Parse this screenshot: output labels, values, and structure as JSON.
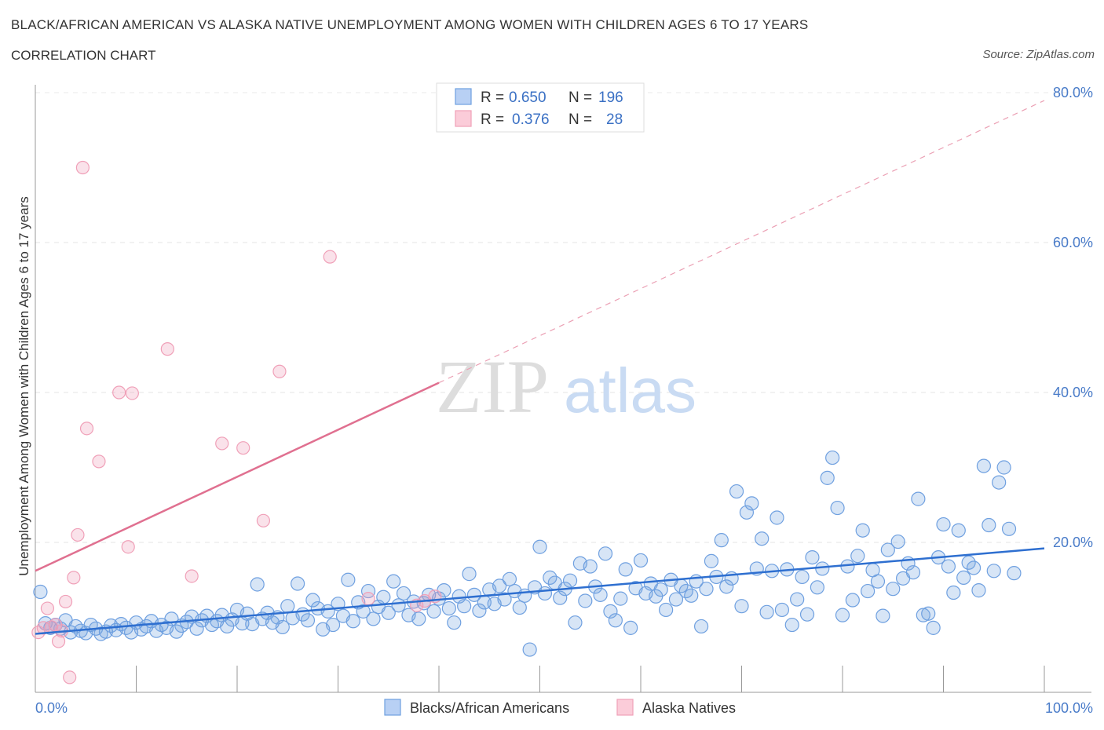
{
  "title": "BLACK/AFRICAN AMERICAN VS ALASKA NATIVE UNEMPLOYMENT AMONG WOMEN WITH CHILDREN AGES 6 TO 17 YEARS",
  "subtitle": "CORRELATION CHART",
  "source": "Source: ZipAtlas.com",
  "watermark": {
    "zip": "ZIP",
    "atlas": "atlas"
  },
  "colors": {
    "blue": "#6fa0e0",
    "blue_line": "#2e6fd0",
    "pink": "#f0a0b8",
    "pink_line": "#e07090"
  },
  "legend": {
    "r_label": "R =",
    "n_label": "N =",
    "rows": [
      {
        "r": "0.650",
        "n": "196"
      },
      {
        "r": "0.376",
        "n": "28"
      }
    ]
  },
  "chart_data": {
    "type": "scatter",
    "title": "BLACK/AFRICAN AMERICAN VS ALASKA NATIVE UNEMPLOYMENT AMONG WOMEN WITH CHILDREN AGES 6 TO 17 YEARS",
    "xlabel": "",
    "ylabel": "Unemployment Among Women with Children Ages 6 to 17 years",
    "xlim": [
      0,
      100
    ],
    "ylim": [
      0,
      80
    ],
    "x_tick_labels": [
      "0.0%",
      "100.0%"
    ],
    "y_tick_labels": [
      "20.0%",
      "40.0%",
      "60.0%",
      "80.0%"
    ],
    "y_ticks": [
      20,
      40,
      60,
      80
    ],
    "grid": true,
    "legend_position": "top-center",
    "series": [
      {
        "name": "Blacks/African Americans",
        "r": 0.65,
        "n": 196,
        "trend": {
          "x": [
            0,
            100
          ],
          "y": [
            7.8,
            19.2
          ]
        },
        "points": [
          [
            0.5,
            13.4
          ],
          [
            1,
            9.2
          ],
          [
            1.5,
            8.6
          ],
          [
            2,
            9.0
          ],
          [
            2.5,
            8.5
          ],
          [
            3,
            9.6
          ],
          [
            3.5,
            8.0
          ],
          [
            4,
            8.8
          ],
          [
            4.5,
            8.2
          ],
          [
            5,
            7.9
          ],
          [
            5.5,
            9.0
          ],
          [
            6,
            8.5
          ],
          [
            6.5,
            7.8
          ],
          [
            7,
            8.1
          ],
          [
            7.5,
            8.9
          ],
          [
            8,
            8.3
          ],
          [
            8.5,
            9.1
          ],
          [
            9,
            8.6
          ],
          [
            9.5,
            8.0
          ],
          [
            10,
            9.3
          ],
          [
            10.5,
            8.4
          ],
          [
            11,
            8.8
          ],
          [
            11.5,
            9.5
          ],
          [
            12,
            8.2
          ],
          [
            12.5,
            9.0
          ],
          [
            13,
            8.6
          ],
          [
            13.5,
            9.8
          ],
          [
            14,
            8.1
          ],
          [
            14.5,
            8.9
          ],
          [
            15,
            9.4
          ],
          [
            15.5,
            10.1
          ],
          [
            16,
            8.5
          ],
          [
            16.5,
            9.6
          ],
          [
            17,
            10.2
          ],
          [
            17.5,
            9.0
          ],
          [
            18,
            9.5
          ],
          [
            18.5,
            10.3
          ],
          [
            19,
            8.8
          ],
          [
            19.5,
            9.7
          ],
          [
            20,
            11.0
          ],
          [
            20.5,
            9.2
          ],
          [
            21,
            10.5
          ],
          [
            21.5,
            9.1
          ],
          [
            22,
            14.4
          ],
          [
            22.5,
            9.8
          ],
          [
            23,
            10.6
          ],
          [
            23.5,
            9.3
          ],
          [
            24,
            10.0
          ],
          [
            24.5,
            8.7
          ],
          [
            25,
            11.5
          ],
          [
            25.5,
            9.9
          ],
          [
            26,
            14.5
          ],
          [
            26.5,
            10.4
          ],
          [
            27,
            9.6
          ],
          [
            27.5,
            12.3
          ],
          [
            28,
            11.2
          ],
          [
            28.5,
            8.4
          ],
          [
            29,
            10.8
          ],
          [
            29.5,
            9.0
          ],
          [
            30,
            11.8
          ],
          [
            30.5,
            10.2
          ],
          [
            31,
            15.0
          ],
          [
            31.5,
            9.5
          ],
          [
            32,
            12.0
          ],
          [
            32.5,
            10.8
          ],
          [
            33,
            13.5
          ],
          [
            33.5,
            9.8
          ],
          [
            34,
            11.4
          ],
          [
            34.5,
            12.7
          ],
          [
            35,
            10.6
          ],
          [
            35.5,
            14.8
          ],
          [
            36,
            11.6
          ],
          [
            36.5,
            13.2
          ],
          [
            37,
            10.3
          ],
          [
            37.5,
            12.1
          ],
          [
            38,
            9.8
          ],
          [
            38.5,
            11.9
          ],
          [
            39,
            13.0
          ],
          [
            39.5,
            10.8
          ],
          [
            40,
            12.5
          ],
          [
            40.5,
            13.6
          ],
          [
            41,
            11.2
          ],
          [
            41.5,
            9.3
          ],
          [
            42,
            12.8
          ],
          [
            42.5,
            11.5
          ],
          [
            43,
            15.8
          ],
          [
            43.5,
            13.0
          ],
          [
            44,
            10.9
          ],
          [
            44.5,
            12.0
          ],
          [
            45,
            13.7
          ],
          [
            45.5,
            11.8
          ],
          [
            46,
            14.2
          ],
          [
            46.5,
            12.4
          ],
          [
            47,
            15.1
          ],
          [
            47.5,
            13.5
          ],
          [
            48,
            11.3
          ],
          [
            48.5,
            12.9
          ],
          [
            49,
            5.7
          ],
          [
            49.5,
            14.0
          ],
          [
            50,
            19.4
          ],
          [
            50.5,
            13.2
          ],
          [
            51,
            15.3
          ],
          [
            51.5,
            14.6
          ],
          [
            52,
            12.6
          ],
          [
            52.5,
            13.8
          ],
          [
            53,
            14.9
          ],
          [
            53.5,
            9.3
          ],
          [
            54,
            17.2
          ],
          [
            54.5,
            12.2
          ],
          [
            55,
            16.8
          ],
          [
            55.5,
            14.1
          ],
          [
            56,
            13.0
          ],
          [
            56.5,
            18.5
          ],
          [
            57,
            10.8
          ],
          [
            57.5,
            9.6
          ],
          [
            58,
            12.5
          ],
          [
            58.5,
            16.4
          ],
          [
            59,
            8.6
          ],
          [
            59.5,
            13.9
          ],
          [
            60,
            17.6
          ],
          [
            60.5,
            13.2
          ],
          [
            61,
            14.5
          ],
          [
            61.5,
            12.8
          ],
          [
            62,
            13.7
          ],
          [
            62.5,
            11.0
          ],
          [
            63,
            15.0
          ],
          [
            63.5,
            12.4
          ],
          [
            64,
            14.2
          ],
          [
            64.5,
            13.5
          ],
          [
            65,
            12.9
          ],
          [
            65.5,
            14.8
          ],
          [
            66,
            8.8
          ],
          [
            66.5,
            13.8
          ],
          [
            67,
            17.5
          ],
          [
            67.5,
            15.4
          ],
          [
            68,
            20.3
          ],
          [
            68.5,
            14.1
          ],
          [
            69,
            15.2
          ],
          [
            69.5,
            26.8
          ],
          [
            70,
            11.5
          ],
          [
            70.5,
            24.0
          ],
          [
            71,
            25.2
          ],
          [
            71.5,
            16.5
          ],
          [
            72,
            20.5
          ],
          [
            72.5,
            10.7
          ],
          [
            73,
            16.2
          ],
          [
            73.5,
            23.3
          ],
          [
            74,
            11.0
          ],
          [
            74.5,
            16.4
          ],
          [
            75,
            9.0
          ],
          [
            75.5,
            12.4
          ],
          [
            76,
            15.4
          ],
          [
            76.5,
            10.4
          ],
          [
            77,
            18.0
          ],
          [
            77.5,
            14.0
          ],
          [
            78,
            16.5
          ],
          [
            78.5,
            28.6
          ],
          [
            79,
            31.3
          ],
          [
            79.5,
            24.6
          ],
          [
            80,
            10.3
          ],
          [
            80.5,
            16.8
          ],
          [
            81,
            12.3
          ],
          [
            81.5,
            18.2
          ],
          [
            82,
            21.6
          ],
          [
            82.5,
            13.5
          ],
          [
            83,
            16.3
          ],
          [
            83.5,
            14.8
          ],
          [
            84,
            10.2
          ],
          [
            84.5,
            19.0
          ],
          [
            85,
            13.8
          ],
          [
            85.5,
            20.1
          ],
          [
            86,
            15.2
          ],
          [
            86.5,
            17.2
          ],
          [
            87,
            16.0
          ],
          [
            87.5,
            25.8
          ],
          [
            88,
            10.3
          ],
          [
            88.5,
            10.5
          ],
          [
            89,
            8.6
          ],
          [
            89.5,
            18.0
          ],
          [
            90,
            22.4
          ],
          [
            90.5,
            16.8
          ],
          [
            91,
            13.3
          ],
          [
            91.5,
            21.6
          ],
          [
            92,
            15.3
          ],
          [
            92.5,
            17.3
          ],
          [
            93,
            16.6
          ],
          [
            93.5,
            13.6
          ],
          [
            94,
            30.2
          ],
          [
            94.5,
            22.3
          ],
          [
            95,
            16.2
          ],
          [
            95.5,
            28.0
          ],
          [
            96,
            30.0
          ],
          [
            96.5,
            21.8
          ],
          [
            97,
            15.9
          ]
        ]
      },
      {
        "name": "Alaska Natives",
        "r": 0.376,
        "n": 28,
        "trend": {
          "x": [
            0,
            40
          ],
          "y": [
            16.2,
            41.3
          ]
        },
        "points": [
          [
            0.3,
            8.0
          ],
          [
            0.8,
            8.6
          ],
          [
            1.2,
            11.2
          ],
          [
            1.6,
            8.7
          ],
          [
            2,
            9.0
          ],
          [
            2.3,
            6.8
          ],
          [
            2.6,
            8.2
          ],
          [
            3,
            12.1
          ],
          [
            3.4,
            2.0
          ],
          [
            3.8,
            15.3
          ],
          [
            4.2,
            21.0
          ],
          [
            4.7,
            70.0
          ],
          [
            5.1,
            35.2
          ],
          [
            6.3,
            30.8
          ],
          [
            8.3,
            40.0
          ],
          [
            9.2,
            19.4
          ],
          [
            9.6,
            39.9
          ],
          [
            13.1,
            45.8
          ],
          [
            15.5,
            15.5
          ],
          [
            18.5,
            33.2
          ],
          [
            20.6,
            32.6
          ],
          [
            22.6,
            22.9
          ],
          [
            24.2,
            42.8
          ],
          [
            29.2,
            58.1
          ],
          [
            33,
            12.5
          ],
          [
            37.8,
            11.6
          ],
          [
            38.6,
            12.2
          ],
          [
            39.6,
            12.8
          ]
        ]
      }
    ]
  },
  "bottom_legend": [
    "Blacks/African Americans",
    "Alaska Natives"
  ]
}
